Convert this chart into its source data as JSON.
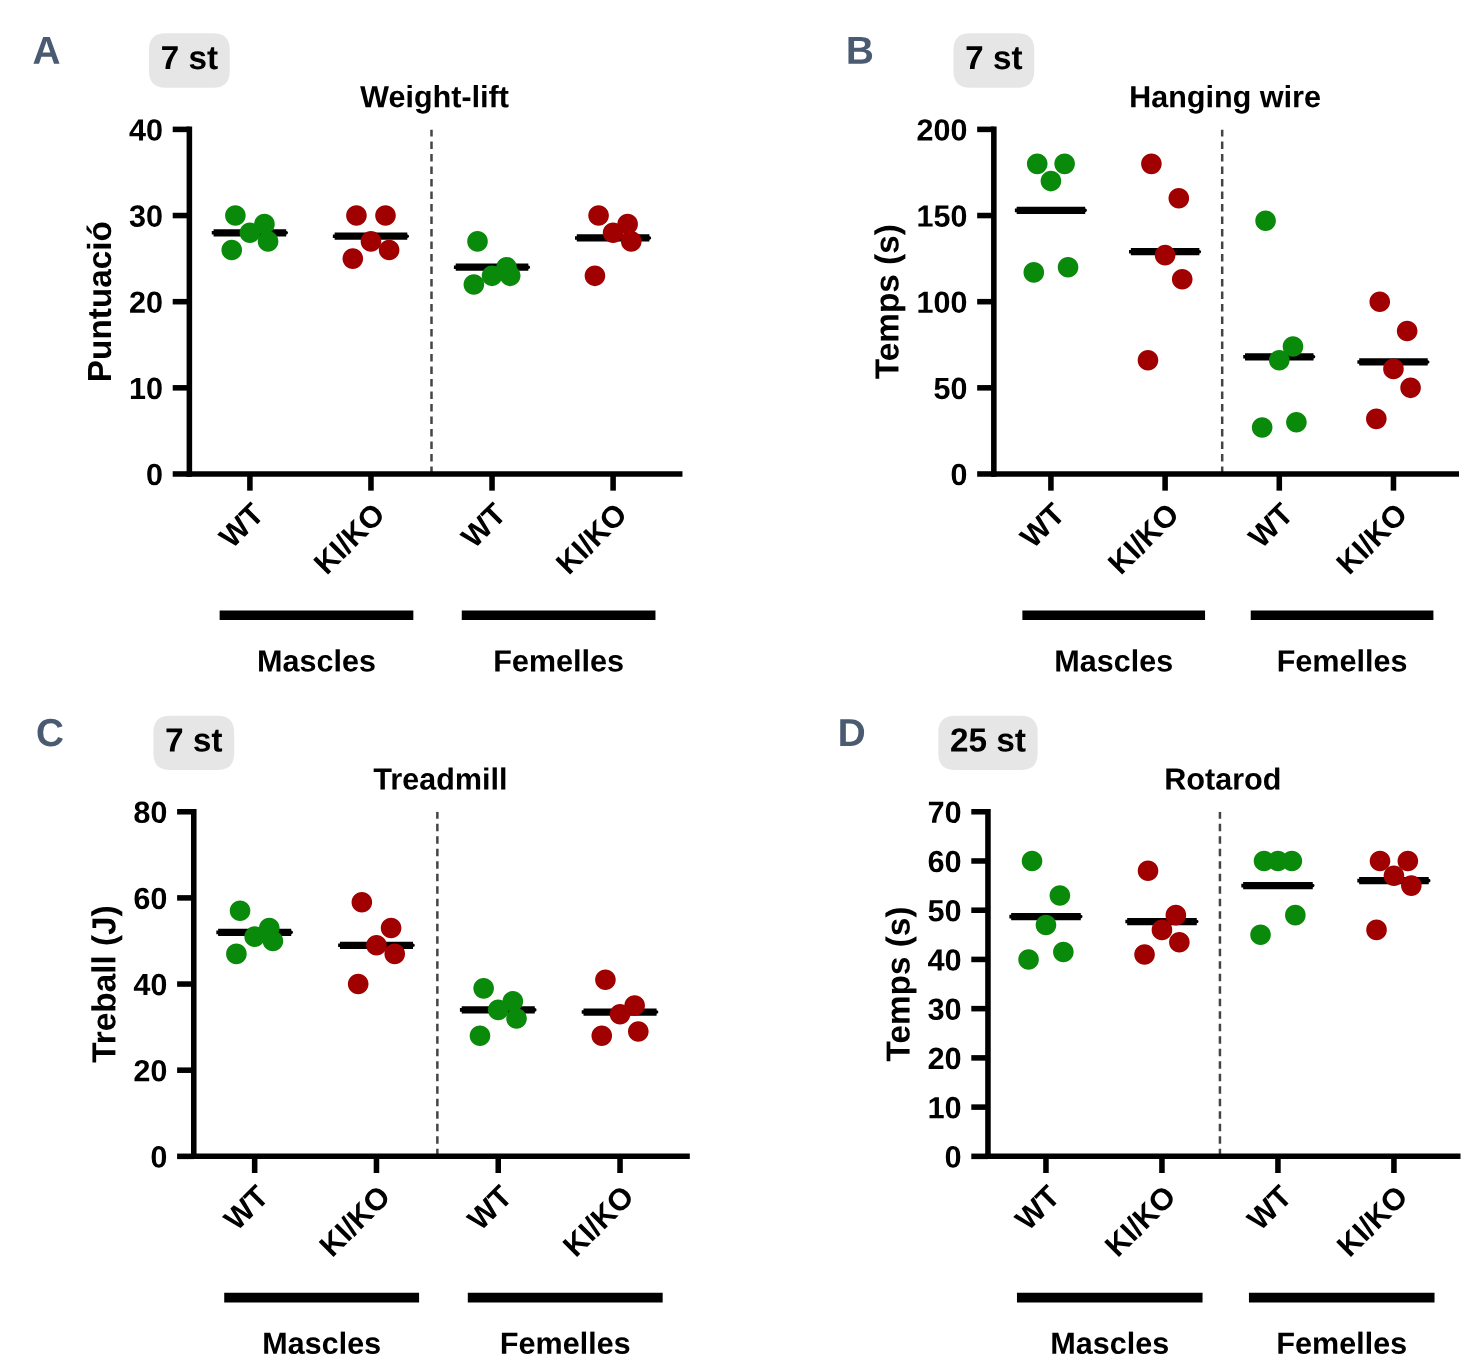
{
  "chart_data": [
    {
      "type": "scatter",
      "title": "Weight-lift",
      "ylabel": "Puntuació",
      "categories": [
        "WT",
        "KI/KO",
        "WT",
        "KI/KO"
      ],
      "ylim": [
        0,
        40
      ],
      "yticks": [
        0,
        10,
        20,
        30,
        40
      ],
      "annotations": [
        "A",
        "7 st",
        "Mascles",
        "Femelles"
      ],
      "series": [
        {
          "colors": [
            "#0a8a0a",
            "#a00000",
            "#0a8a0a",
            "#a00000"
          ],
          "marker": "circle",
          "values": [
            30,
            30,
            27,
            30
          ]
        },
        {
          "colors": [
            "#0a8a0a",
            "#a00000",
            "#0a8a0a",
            "#a00000"
          ],
          "marker": "circle",
          "values": [
            29,
            30,
            24,
            29
          ]
        },
        {
          "colors": [
            "#0a8a0a",
            "#a00000",
            "#0a8a0a",
            "#a00000"
          ],
          "marker": "circle",
          "values": [
            28,
            27,
            23,
            28
          ]
        },
        {
          "colors": [
            "#0a8a0a",
            "#a00000",
            "#0a8a0a",
            "#a00000"
          ],
          "marker": "circle",
          "values": [
            27,
            26,
            23,
            27
          ]
        },
        {
          "colors": [
            "#0a8a0a",
            "#a00000",
            "#0a8a0a",
            "#a00000"
          ],
          "marker": "circle",
          "values": [
            26,
            25,
            22,
            23
          ]
        },
        {
          "type": "box",
          "color": "#000000",
          "boxes": [
            {
              "low": 28,
              "q1": 28,
              "median": 28,
              "q3": 28,
              "high": 28
            },
            {
              "low": 27.6,
              "q1": 27.6,
              "median": 27.6,
              "q3": 27.6,
              "high": 27.6
            },
            {
              "low": 24,
              "q1": 24,
              "median": 24,
              "q3": 24,
              "high": 24
            },
            {
              "low": 27.4,
              "q1": 27.4,
              "median": 27.4,
              "q3": 27.4,
              "high": 27.4
            }
          ]
        }
      ]
    },
    {
      "type": "scatter",
      "title": "Hanging wire",
      "ylabel": "Temps (s)",
      "categories": [
        "WT",
        "KI/KO",
        "WT",
        "KI/KO"
      ],
      "ylim": [
        0,
        200
      ],
      "yticks": [
        0,
        50,
        100,
        150,
        200
      ],
      "annotations": [
        "B",
        "7 st",
        "Mascles",
        "Femelles"
      ],
      "series": [
        {
          "colors": [
            "#0a8a0a",
            "#a00000",
            "#0a8a0a",
            "#a00000"
          ],
          "marker": "circle",
          "values": [
            180,
            180,
            147,
            100
          ]
        },
        {
          "colors": [
            "#0a8a0a",
            "#a00000",
            "#0a8a0a",
            "#a00000"
          ],
          "marker": "circle",
          "values": [
            180,
            160,
            74,
            83
          ]
        },
        {
          "colors": [
            "#0a8a0a",
            "#a00000",
            "#0a8a0a",
            "#a00000"
          ],
          "marker": "circle",
          "values": [
            170,
            127,
            66,
            61
          ]
        },
        {
          "colors": [
            "#0a8a0a",
            "#a00000",
            "#0a8a0a",
            "#a00000"
          ],
          "marker": "circle",
          "values": [
            120,
            113,
            30,
            50
          ]
        },
        {
          "colors": [
            "#0a8a0a",
            "#a00000",
            "#0a8a0a",
            "#a00000"
          ],
          "marker": "circle",
          "values": [
            117,
            66,
            27,
            32
          ]
        },
        {
          "type": "box",
          "color": "#000000",
          "boxes": [
            {
              "low": 153,
              "q1": 153,
              "median": 153,
              "q3": 153,
              "high": 153
            },
            {
              "low": 129,
              "q1": 129,
              "median": 129,
              "q3": 129,
              "high": 129
            },
            {
              "low": 68,
              "q1": 68,
              "median": 68,
              "q3": 68,
              "high": 68
            },
            {
              "low": 65,
              "q1": 65,
              "median": 65,
              "q3": 65,
              "high": 65
            }
          ]
        }
      ]
    },
    {
      "type": "scatter",
      "title": "Treadmill",
      "ylabel": "Treball (J)",
      "categories": [
        "WT",
        "KI/KO",
        "WT",
        "KI/KO"
      ],
      "ylim": [
        0,
        80
      ],
      "yticks": [
        0,
        20,
        40,
        60,
        80
      ],
      "annotations": [
        "C",
        "7 st",
        "Mascles",
        "Femelles"
      ],
      "series": [
        {
          "colors": [
            "#0a8a0a",
            "#a00000",
            "#0a8a0a",
            "#a00000"
          ],
          "marker": "circle",
          "values": [
            57,
            59,
            39,
            41
          ]
        },
        {
          "colors": [
            "#0a8a0a",
            "#a00000",
            "#0a8a0a",
            "#a00000"
          ],
          "marker": "circle",
          "values": [
            53,
            53,
            36,
            35
          ]
        },
        {
          "colors": [
            "#0a8a0a",
            "#a00000",
            "#0a8a0a",
            "#a00000"
          ],
          "marker": "circle",
          "values": [
            51,
            49,
            34,
            33
          ]
        },
        {
          "colors": [
            "#0a8a0a",
            "#a00000",
            "#0a8a0a",
            "#a00000"
          ],
          "marker": "circle",
          "values": [
            50,
            47,
            32,
            29
          ]
        },
        {
          "colors": [
            "#0a8a0a",
            "#a00000",
            "#0a8a0a",
            "#a00000"
          ],
          "marker": "circle",
          "values": [
            47,
            40,
            28,
            28
          ]
        },
        {
          "type": "box",
          "color": "#000000",
          "boxes": [
            {
              "low": 52,
              "q1": 52,
              "median": 52,
              "q3": 52,
              "high": 52
            },
            {
              "low": 49,
              "q1": 49,
              "median": 49,
              "q3": 49,
              "high": 49
            },
            {
              "low": 34,
              "q1": 34,
              "median": 34,
              "q3": 34,
              "high": 34
            },
            {
              "low": 33.5,
              "q1": 33.5,
              "median": 33.5,
              "q3": 33.5,
              "high": 33.5
            }
          ]
        }
      ]
    },
    {
      "type": "scatter",
      "title": "Rotarod",
      "ylabel": "Temps (s)",
      "categories": [
        "WT",
        "KI/KO",
        "WT",
        "KI/KO"
      ],
      "ylim": [
        0,
        70
      ],
      "yticks": [
        0,
        10,
        20,
        30,
        40,
        50,
        60,
        70
      ],
      "annotations": [
        "D",
        "25 st",
        "Mascles",
        "Femelles"
      ],
      "series": [
        {
          "colors": [
            "#0a8a0a",
            "#a00000",
            "#0a8a0a",
            "#a00000"
          ],
          "marker": "circle",
          "values": [
            60,
            58,
            60,
            60
          ]
        },
        {
          "colors": [
            "#0a8a0a",
            "#a00000",
            "#0a8a0a",
            "#a00000"
          ],
          "marker": "circle",
          "values": [
            53,
            49,
            60,
            60
          ]
        },
        {
          "colors": [
            "#0a8a0a",
            "#a00000",
            "#0a8a0a",
            "#a00000"
          ],
          "marker": "circle",
          "values": [
            47,
            46,
            60,
            57
          ]
        },
        {
          "colors": [
            "#0a8a0a",
            "#a00000",
            "#0a8a0a",
            "#a00000"
          ],
          "marker": "circle",
          "values": [
            41.5,
            43.5,
            49,
            55
          ]
        },
        {
          "colors": [
            "#0a8a0a",
            "#a00000",
            "#0a8a0a",
            "#a00000"
          ],
          "marker": "circle",
          "values": [
            40,
            41,
            45,
            46
          ]
        },
        {
          "type": "box",
          "color": "#000000",
          "boxes": [
            {
              "low": 48.7,
              "q1": 48.7,
              "median": 48.7,
              "q3": 48.7,
              "high": 48.7
            },
            {
              "low": 47.7,
              "q1": 47.7,
              "median": 47.7,
              "q3": 47.7,
              "high": 47.7
            },
            {
              "low": 55,
              "q1": 55,
              "median": 55,
              "q3": 55,
              "high": 55
            },
            {
              "low": 56,
              "q1": 56,
              "median": 56,
              "q3": 56,
              "high": 56
            }
          ]
        }
      ]
    }
  ]
}
